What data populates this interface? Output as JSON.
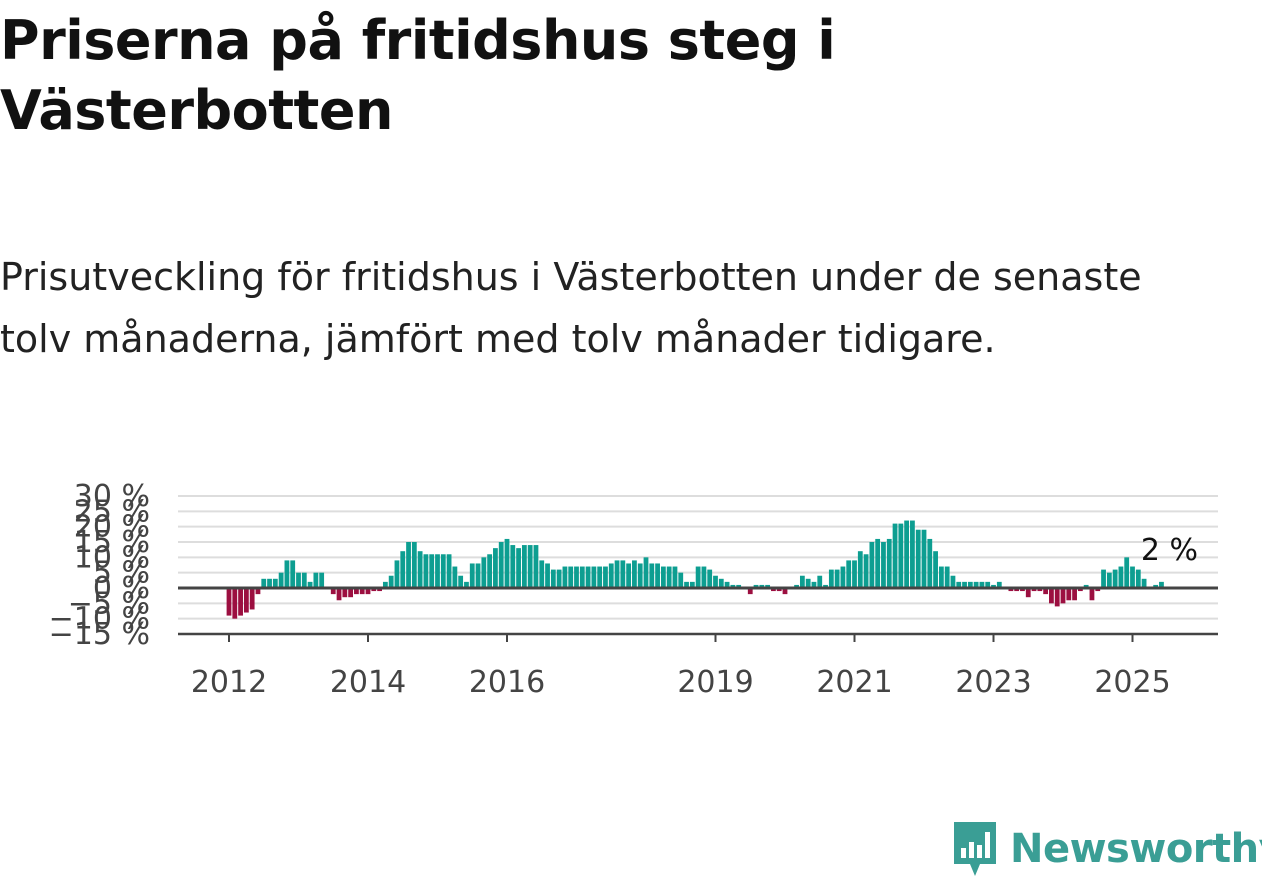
{
  "title": "Priserna på fritidshus steg i Västerbotten",
  "subtitle": "Prisutveckling för fritidshus i Västerbotten under de senaste tolv månaderna, jämfört med tolv månader tidigare.",
  "brand": {
    "name": "Newsworthy",
    "color": "#3a9e95",
    "icon": "newsworthy-logo-icon"
  },
  "colors": {
    "positive": "#0d9e91",
    "negative": "#9c0f40",
    "grid": "#dddddd",
    "zero_line": "#444444"
  },
  "chart_data": {
    "type": "bar",
    "title": "",
    "xlabel": "",
    "ylabel": "",
    "ylim": [
      -15,
      30
    ],
    "yticks": [
      -15,
      -10,
      -5,
      0,
      5,
      10,
      15,
      20,
      25,
      30
    ],
    "ytick_labels": [
      "−15 %",
      "−10 %",
      "−5 %",
      "0 %",
      "5 %",
      "10 %",
      "15 %",
      "20 %",
      "25 %",
      "30 %"
    ],
    "xticks": [
      "2012",
      "2014",
      "2016",
      "2019",
      "2021",
      "2023",
      "2025"
    ],
    "x_start": "2012-01",
    "frequency": "monthly",
    "annotation": {
      "label": "2 %",
      "value": 2
    },
    "values": [
      -9,
      -10,
      -9,
      -8,
      -7,
      -2,
      3,
      3,
      3,
      5,
      9,
      9,
      5,
      5,
      2,
      5,
      5,
      0,
      -2,
      -4,
      -3,
      -3,
      -2,
      -2,
      -2,
      -1,
      -1,
      2,
      4,
      9,
      12,
      15,
      15,
      12,
      11,
      11,
      11,
      11,
      11,
      7,
      4,
      2,
      8,
      8,
      10,
      11,
      13,
      15,
      16,
      14,
      13,
      14,
      14,
      14,
      9,
      8,
      6,
      6,
      7,
      7,
      7,
      7,
      7,
      7,
      7,
      7,
      8,
      9,
      9,
      8,
      9,
      8,
      10,
      8,
      8,
      7,
      7,
      7,
      5,
      2,
      2,
      7,
      7,
      6,
      4,
      3,
      2,
      1,
      1,
      0,
      -2,
      1,
      1,
      1,
      -1,
      -1,
      -2,
      0,
      1,
      4,
      3,
      2,
      4,
      1,
      6,
      6,
      7,
      9,
      9,
      12,
      11,
      15,
      16,
      15,
      16,
      21,
      21,
      22,
      22,
      19,
      19,
      16,
      12,
      7,
      7,
      4,
      2,
      2,
      2,
      2,
      2,
      2,
      1,
      2,
      0,
      -1,
      -1,
      -1,
      -3,
      -1,
      -1,
      -2,
      -5,
      -6,
      -5,
      -4,
      -4,
      -1,
      1,
      -4,
      -1,
      6,
      5,
      6,
      7,
      10,
      7,
      6,
      3,
      0,
      1,
      2
    ]
  }
}
